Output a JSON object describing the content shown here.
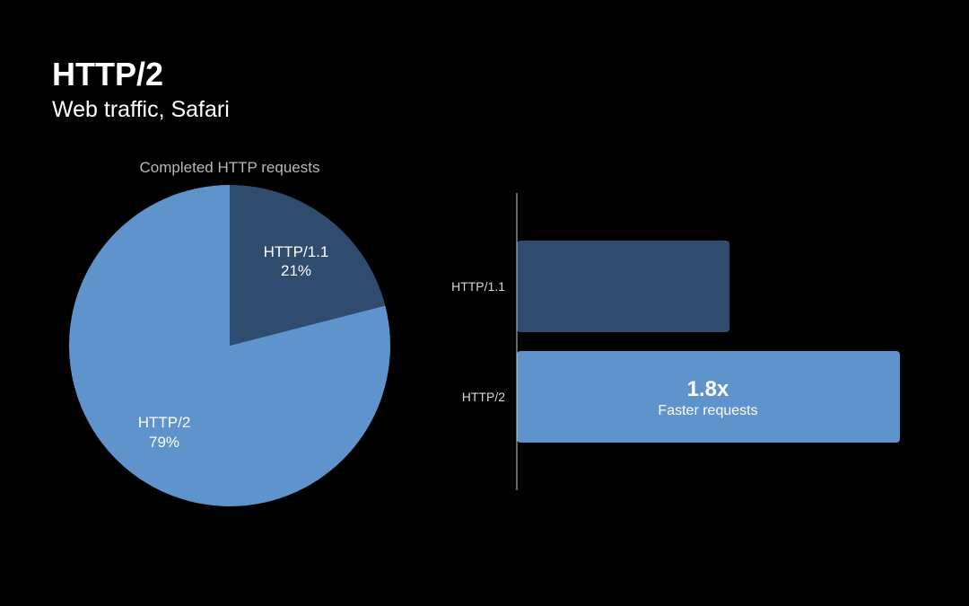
{
  "slide": {
    "title": "HTTP/2",
    "subtitle": "Web traffic, Safari"
  },
  "chart_data": [
    {
      "type": "pie",
      "title": "Completed HTTP requests",
      "slices": [
        {
          "label": "HTTP/1.1",
          "value": 21,
          "value_label": "21%",
          "color": "#2f4b6e"
        },
        {
          "label": "HTTP/2",
          "value": 79,
          "value_label": "79%",
          "color": "#5f93cc"
        }
      ]
    },
    {
      "type": "bar",
      "orientation": "horizontal",
      "categories": [
        "HTTP/1.1",
        "HTTP/2"
      ],
      "values": [
        1.0,
        1.8
      ],
      "colors": [
        "#2f4b6e",
        "#5f93cc"
      ],
      "annotation": {
        "category": "HTTP/2",
        "value_text": "1.8x",
        "caption": "Faster requests"
      }
    }
  ]
}
